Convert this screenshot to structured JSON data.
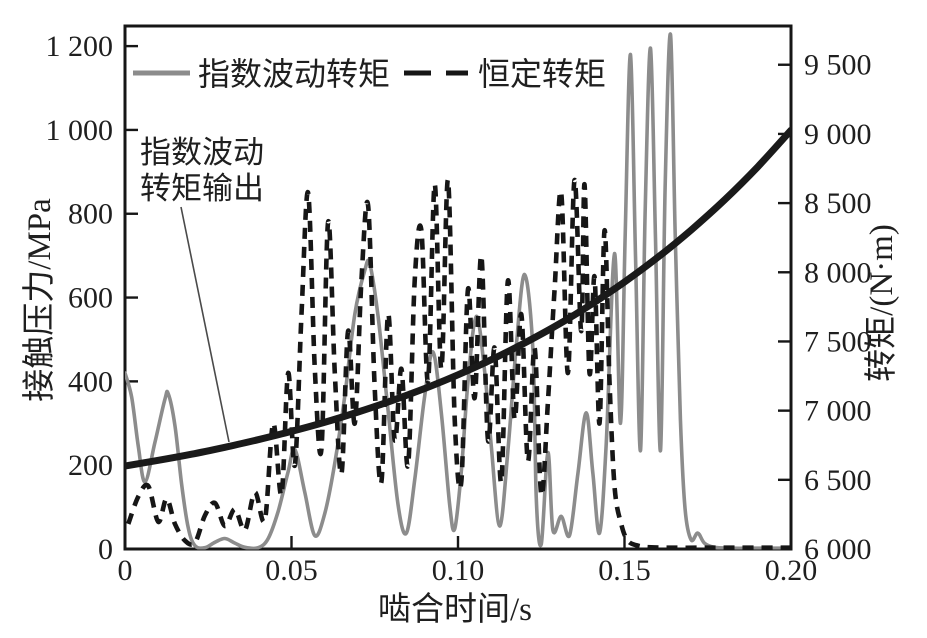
{
  "figure": {
    "xlabel": "啮合时间/s",
    "ylabel_left": "接触压力/MPa",
    "ylabel_right": "转矩/(N·m)",
    "legend": {
      "item1_label": "指数波动转矩",
      "item2_label": "恒定转矩"
    },
    "annotation": {
      "line1": "指数波动",
      "line2": "转矩输出"
    },
    "colors": {
      "fluctuating_pressure_curve": "#8c8c8c",
      "constant_pressure_curve": "#161616",
      "torque_output_curve": "#1a1a1a",
      "text": "#1f1f1f",
      "background": "#ffffff"
    }
  },
  "chart_data": {
    "type": "line",
    "title": "",
    "xlabel": "啮合时间/s",
    "ylabel_left": "接触压力/MPa",
    "ylabel_right": "转矩/(N·m)",
    "grid": false,
    "legend_position": "top-inside",
    "xlim": [
      0,
      0.2
    ],
    "ylim_left": [
      0,
      1248
    ],
    "ylim_right": [
      6000,
      9780
    ],
    "x_ticks": [
      0,
      0.05,
      0.1,
      0.15,
      0.2
    ],
    "x_tick_labels": [
      "0",
      "0.05",
      "0.10",
      "0.15",
      "0.20"
    ],
    "y_ticks_left": [
      0,
      200,
      400,
      600,
      800,
      1000,
      1200
    ],
    "y_tick_labels_left": [
      "0",
      "200",
      "400",
      "600",
      "800",
      "1 000",
      "1 200"
    ],
    "y_ticks_right": [
      6000,
      6500,
      7000,
      7500,
      8000,
      8500,
      9000,
      9500
    ],
    "y_tick_labels_right": [
      "6 000",
      "6 500",
      "7 000",
      "7 500",
      "8 000",
      "8 500",
      "9 000",
      "9 500"
    ],
    "series": [
      {
        "name": "指数波动转矩",
        "axis": "left",
        "style": "solid",
        "color": "#8c8c8c",
        "width": 3.6,
        "points": [
          [
            0,
            420
          ],
          [
            0.002,
            362
          ],
          [
            0.004,
            245
          ],
          [
            0.006,
            160
          ],
          [
            0.009,
            255
          ],
          [
            0.012,
            358
          ],
          [
            0.013,
            370
          ],
          [
            0.015,
            295
          ],
          [
            0.017,
            155
          ],
          [
            0.019,
            50
          ],
          [
            0.021,
            8
          ],
          [
            0.024,
            3
          ],
          [
            0.027,
            16
          ],
          [
            0.03,
            25
          ],
          [
            0.033,
            14
          ],
          [
            0.036,
            4
          ],
          [
            0.04,
            3
          ],
          [
            0.043,
            25
          ],
          [
            0.046,
            90
          ],
          [
            0.049,
            185
          ],
          [
            0.051,
            238
          ],
          [
            0.054,
            135
          ],
          [
            0.057,
            32
          ],
          [
            0.06,
            85
          ],
          [
            0.063,
            205
          ],
          [
            0.066,
            365
          ],
          [
            0.069,
            560
          ],
          [
            0.072,
            665
          ],
          [
            0.0735,
            680
          ],
          [
            0.076,
            555
          ],
          [
            0.079,
            330
          ],
          [
            0.082,
            105
          ],
          [
            0.0845,
            38
          ],
          [
            0.087,
            165
          ],
          [
            0.09,
            365
          ],
          [
            0.0925,
            470
          ],
          [
            0.095,
            325
          ],
          [
            0.0975,
            105
          ],
          [
            0.099,
            48
          ],
          [
            0.101,
            185
          ],
          [
            0.103,
            400
          ],
          [
            0.1055,
            555
          ],
          [
            0.108,
            425
          ],
          [
            0.11,
            245
          ],
          [
            0.1125,
            55
          ],
          [
            0.115,
            235
          ],
          [
            0.1175,
            485
          ],
          [
            0.12,
            655
          ],
          [
            0.1225,
            475
          ],
          [
            0.1235,
            120
          ],
          [
            0.125,
            12
          ],
          [
            0.127,
            230
          ],
          [
            0.1285,
            45
          ],
          [
            0.131,
            78
          ],
          [
            0.1335,
            33
          ],
          [
            0.136,
            180
          ],
          [
            0.1385,
            325
          ],
          [
            0.1405,
            180
          ],
          [
            0.1425,
            38
          ],
          [
            0.1445,
            250
          ],
          [
            0.147,
            705
          ],
          [
            0.1488,
            300
          ],
          [
            0.1502,
            750
          ],
          [
            0.1518,
            1180
          ],
          [
            0.1533,
            700
          ],
          [
            0.1548,
            235
          ],
          [
            0.1562,
            800
          ],
          [
            0.1578,
            1195
          ],
          [
            0.1593,
            740
          ],
          [
            0.1608,
            235
          ],
          [
            0.1622,
            860
          ],
          [
            0.1638,
            1228
          ],
          [
            0.1652,
            760
          ],
          [
            0.1668,
            310
          ],
          [
            0.1682,
            95
          ],
          [
            0.17,
            22
          ],
          [
            0.172,
            38
          ],
          [
            0.174,
            14
          ],
          [
            0.177,
            4
          ],
          [
            0.182,
            2
          ],
          [
            0.19,
            2
          ],
          [
            0.2,
            2
          ]
        ]
      },
      {
        "name": "恒定转矩",
        "axis": "left",
        "style": "dashed",
        "color": "#161616",
        "width": 4.6,
        "dash": [
          11,
          8
        ],
        "points": [
          [
            0.001,
            60
          ],
          [
            0.004,
            125
          ],
          [
            0.007,
            150
          ],
          [
            0.01,
            65
          ],
          [
            0.0125,
            120
          ],
          [
            0.015,
            60
          ],
          [
            0.018,
            20
          ],
          [
            0.021,
            15
          ],
          [
            0.024,
            80
          ],
          [
            0.027,
            110
          ],
          [
            0.03,
            55
          ],
          [
            0.033,
            95
          ],
          [
            0.036,
            45
          ],
          [
            0.039,
            135
          ],
          [
            0.042,
            70
          ],
          [
            0.0445,
            300
          ],
          [
            0.047,
            130
          ],
          [
            0.049,
            420
          ],
          [
            0.051,
            200
          ],
          [
            0.053,
            560
          ],
          [
            0.055,
            850
          ],
          [
            0.057,
            430
          ],
          [
            0.059,
            240
          ],
          [
            0.061,
            780
          ],
          [
            0.063,
            420
          ],
          [
            0.065,
            180
          ],
          [
            0.067,
            520
          ],
          [
            0.069,
            300
          ],
          [
            0.071,
            640
          ],
          [
            0.073,
            820
          ],
          [
            0.075,
            380
          ],
          [
            0.077,
            160
          ],
          [
            0.079,
            560
          ],
          [
            0.081,
            260
          ],
          [
            0.083,
            430
          ],
          [
            0.085,
            200
          ],
          [
            0.087,
            640
          ],
          [
            0.089,
            760
          ],
          [
            0.091,
            400
          ],
          [
            0.093,
            870
          ],
          [
            0.095,
            430
          ],
          [
            0.097,
            880
          ],
          [
            0.099,
            310
          ],
          [
            0.101,
            160
          ],
          [
            0.103,
            620
          ],
          [
            0.105,
            360
          ],
          [
            0.107,
            700
          ],
          [
            0.109,
            260
          ],
          [
            0.111,
            480
          ],
          [
            0.113,
            160
          ],
          [
            0.115,
            640
          ],
          [
            0.117,
            310
          ],
          [
            0.119,
            560
          ],
          [
            0.121,
            210
          ],
          [
            0.123,
            480
          ],
          [
            0.125,
            130
          ],
          [
            0.127,
            350
          ],
          [
            0.129,
            620
          ],
          [
            0.131,
            850
          ],
          [
            0.133,
            420
          ],
          [
            0.135,
            880
          ],
          [
            0.137,
            520
          ],
          [
            0.138,
            870
          ],
          [
            0.1395,
            420
          ],
          [
            0.141,
            650
          ],
          [
            0.1425,
            300
          ],
          [
            0.144,
            760
          ],
          [
            0.1455,
            400
          ],
          [
            0.147,
            150
          ],
          [
            0.149,
            60
          ],
          [
            0.151,
            20
          ],
          [
            0.154,
            8
          ],
          [
            0.158,
            4
          ],
          [
            0.165,
            3
          ],
          [
            0.175,
            3
          ],
          [
            0.185,
            3
          ],
          [
            0.2,
            3
          ]
        ]
      },
      {
        "name": "指数波动转矩输出",
        "axis": "right",
        "style": "solid",
        "color": "#1a1a1a",
        "width": 7,
        "points": [
          [
            0.0,
            6600
          ],
          [
            0.01,
            6641
          ],
          [
            0.02,
            6685
          ],
          [
            0.03,
            6735
          ],
          [
            0.04,
            6790
          ],
          [
            0.05,
            6850
          ],
          [
            0.06,
            6916
          ],
          [
            0.07,
            6990
          ],
          [
            0.08,
            7071
          ],
          [
            0.09,
            7160
          ],
          [
            0.1,
            7259
          ],
          [
            0.11,
            7368
          ],
          [
            0.12,
            7489
          ],
          [
            0.13,
            7621
          ],
          [
            0.14,
            7768
          ],
          [
            0.15,
            7930
          ],
          [
            0.16,
            8108
          ],
          [
            0.17,
            8305
          ],
          [
            0.18,
            8522
          ],
          [
            0.19,
            8762
          ],
          [
            0.2,
            9027
          ]
        ]
      }
    ]
  }
}
